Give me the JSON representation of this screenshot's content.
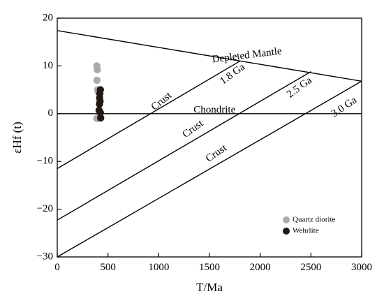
{
  "chart_data": {
    "type": "scatter",
    "xlabel": "T/Ma",
    "ylabel": "εHf (t)",
    "xlim": [
      0,
      3000
    ],
    "ylim": [
      -30,
      20
    ],
    "xticks": [
      0,
      500,
      1000,
      1500,
      2000,
      2500,
      3000
    ],
    "yticks": [
      -30,
      -20,
      -10,
      0,
      10,
      20
    ],
    "grid": false,
    "legend_position": "bottom-right",
    "reference_lines": [
      {
        "name": "Depleted Mantle",
        "points": [
          [
            0,
            17.4
          ],
          [
            3000,
            6.8
          ]
        ]
      },
      {
        "name": "Chondrite",
        "points": [
          [
            0,
            0
          ],
          [
            3000,
            0
          ]
        ]
      },
      {
        "name": "1.8 Ga",
        "points": [
          [
            0,
            -11.5
          ],
          [
            1800,
            11.0
          ]
        ]
      },
      {
        "name": "2.5 Ga",
        "points": [
          [
            0,
            -22.3
          ],
          [
            2500,
            8.8
          ]
        ]
      },
      {
        "name": "3.0 Ga",
        "points": [
          [
            0,
            -30.0
          ],
          [
            3000,
            6.8
          ]
        ]
      }
    ],
    "annotations": [
      {
        "text": "Depleted Mantle",
        "x": 1870,
        "y": 12.1,
        "angle": -7
      },
      {
        "text": "1.8 Ga",
        "x": 1730,
        "y": 8.2,
        "angle": -36
      },
      {
        "text": "2.5 Ga",
        "x": 2390,
        "y": 5.4,
        "angle": -36
      },
      {
        "text": "3.0 Ga",
        "x": 2830,
        "y": 1.3,
        "angle": -34
      },
      {
        "text": "Crust",
        "x": 1030,
        "y": 2.5,
        "angle": -39
      },
      {
        "text": "Crust",
        "x": 1340,
        "y": -3.3,
        "angle": -36
      },
      {
        "text": "Crust",
        "x": 1570,
        "y": -8.4,
        "angle": -34
      },
      {
        "text": "Chondrite",
        "x": 1550,
        "y": 0.7,
        "angle": 0
      }
    ],
    "series": [
      {
        "name": "Quartz diorite",
        "color": "#aaaaaa",
        "points": [
          [
            390,
            10.0
          ],
          [
            395,
            9.2
          ],
          [
            392,
            7.0
          ],
          [
            398,
            5.0
          ],
          [
            405,
            4.5
          ],
          [
            390,
            -1.0
          ]
        ]
      },
      {
        "name": "Wehrlite",
        "color": "#231815",
        "points": [
          [
            425,
            5.0
          ],
          [
            420,
            4.2
          ],
          [
            418,
            3.3
          ],
          [
            422,
            2.6
          ],
          [
            416,
            2.0
          ],
          [
            412,
            0.7
          ],
          [
            425,
            0.2
          ],
          [
            428,
            -0.9
          ]
        ]
      }
    ]
  }
}
